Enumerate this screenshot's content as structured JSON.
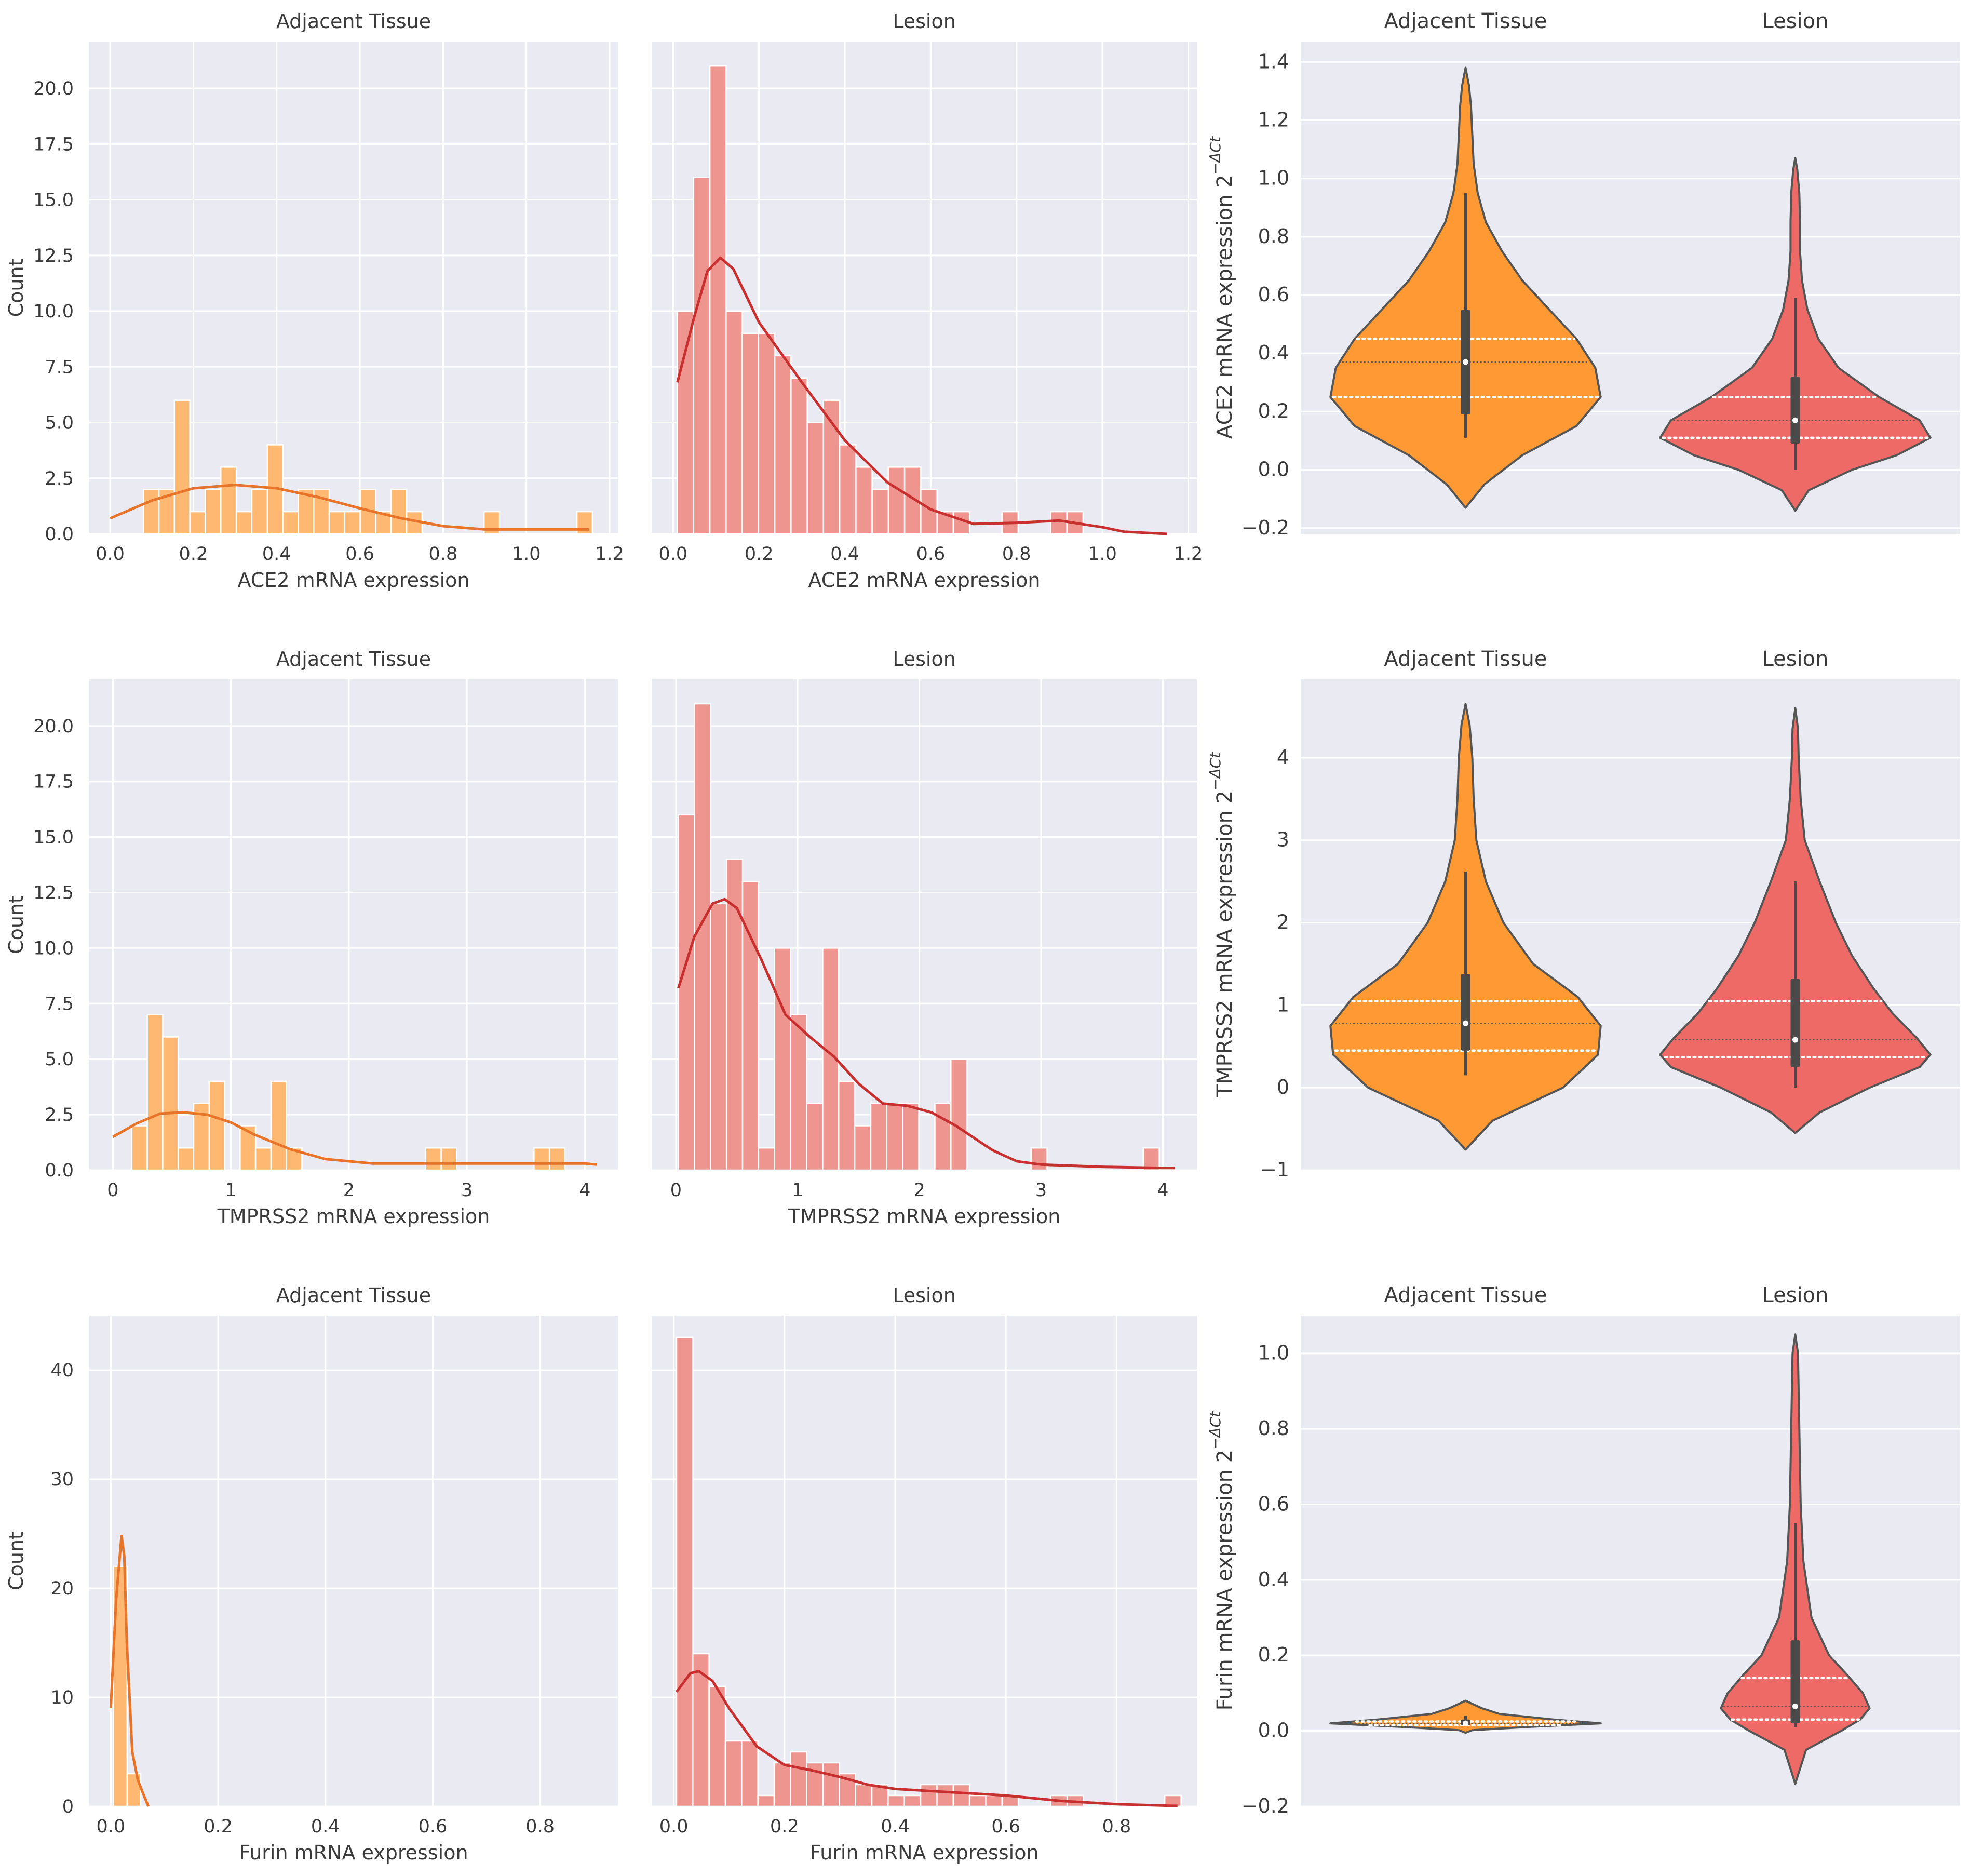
{
  "figure": {
    "background": "#ffffff",
    "panel_bg": "#eaeaf2",
    "grid_color": "#ffffff"
  },
  "colors": {
    "adjacent_fill": "#ffb871",
    "adjacent_line": "#e8742a",
    "lesion_fill": "#ee9590",
    "lesion_line": "#c83030",
    "violin_adjacent": "#ff9933",
    "violin_lesion": "#ee6a66",
    "violin_edge": "#555555"
  },
  "chart_data": [
    {
      "id": "ace2-adjacent",
      "type": "bar",
      "subtype": "histogram",
      "title": "Adjacent Tissue",
      "xlabel": "ACE2 mRNA expression",
      "ylabel": "Count",
      "xlim": [
        -0.05,
        1.22
      ],
      "ylim": [
        0,
        22.1
      ],
      "xticks": [
        0.0,
        0.2,
        0.4,
        0.6,
        0.8,
        1.0,
        1.2
      ],
      "xtick_labels": [
        "0.0",
        "0.2",
        "0.4",
        "0.6",
        "0.8",
        "1.0",
        "1.2"
      ],
      "yticks": [
        0,
        2.5,
        5,
        7.5,
        10,
        12.5,
        15,
        17.5,
        20
      ],
      "ytick_labels": [
        "0.0",
        "2.5",
        "5.0",
        "7.5",
        "10.0",
        "12.5",
        "15.0",
        "17.5",
        "20.0"
      ],
      "show_yticklabels": true,
      "color": "adjacent",
      "bin_start": 0.08,
      "bin_width": 0.0372,
      "counts": [
        2,
        2,
        6,
        1,
        2,
        3,
        1,
        2,
        4,
        1,
        2,
        2,
        1,
        1,
        2,
        1,
        2,
        1,
        0,
        0,
        0,
        0,
        1,
        0,
        0,
        0,
        0,
        0,
        1
      ],
      "kde_x": [
        0,
        0.1,
        0.2,
        0.3,
        0.4,
        0.5,
        0.6,
        0.7,
        0.8,
        0.9,
        1.0,
        1.15
      ],
      "kde_y": [
        0.7,
        1.5,
        2.05,
        2.2,
        2.05,
        1.65,
        1.15,
        0.7,
        0.35,
        0.2,
        0.2,
        0.2
      ]
    },
    {
      "id": "ace2-lesion",
      "type": "bar",
      "subtype": "histogram",
      "title": "Lesion",
      "xlabel": "ACE2 mRNA expression",
      "ylabel": "",
      "xlim": [
        -0.05,
        1.22
      ],
      "ylim": [
        0,
        22.1
      ],
      "xticks": [
        0.0,
        0.2,
        0.4,
        0.6,
        0.8,
        1.0,
        1.2
      ],
      "xtick_labels": [
        "0.0",
        "0.2",
        "0.4",
        "0.6",
        "0.8",
        "1.0",
        "1.2"
      ],
      "yticks": [
        0,
        2.5,
        5,
        7.5,
        10,
        12.5,
        15,
        17.5,
        20
      ],
      "ytick_labels": [],
      "show_yticklabels": false,
      "color": "lesion",
      "bin_start": 0.01,
      "bin_width": 0.0378,
      "counts": [
        10,
        16,
        21,
        10,
        9,
        9,
        8,
        7,
        5,
        6,
        4,
        3,
        2,
        3,
        3,
        2,
        1,
        1,
        0,
        0,
        1,
        0,
        0,
        1,
        1
      ],
      "kde_x": [
        0.01,
        0.05,
        0.08,
        0.11,
        0.14,
        0.2,
        0.3,
        0.4,
        0.5,
        0.6,
        0.7,
        0.8,
        0.9,
        1.0,
        1.05,
        1.15
      ],
      "kde_y": [
        6.8,
        9.8,
        11.8,
        12.4,
        11.9,
        9.5,
        6.8,
        4.2,
        2.3,
        1.1,
        0.45,
        0.5,
        0.6,
        0.3,
        0.1,
        0.0
      ]
    },
    {
      "id": "ace2-violin",
      "type": "violin",
      "titles": [
        "Adjacent Tissue",
        "Lesion"
      ],
      "ylabel": "ACE2 mRNA expression 2",
      "ylabel_sup": "−ΔCt",
      "ylim": [
        -0.22,
        1.47
      ],
      "yticks": [
        -0.2,
        0,
        0.2,
        0.4,
        0.6,
        0.8,
        1.0,
        1.2,
        1.4
      ],
      "ytick_labels": [
        "−0.2",
        "0.0",
        "0.2",
        "0.4",
        "0.6",
        "0.8",
        "1.0",
        "1.2",
        "1.4"
      ],
      "groups": [
        {
          "name": "Adjacent Tissue",
          "color": "adjacent",
          "profile_y": [
            -0.13,
            -0.05,
            0.05,
            0.15,
            0.25,
            0.35,
            0.45,
            0.55,
            0.65,
            0.75,
            0.85,
            0.95,
            1.05,
            1.15,
            1.25,
            1.32,
            1.38
          ],
          "profile_w": [
            0,
            0.14,
            0.42,
            0.82,
            1.0,
            0.96,
            0.82,
            0.62,
            0.42,
            0.27,
            0.15,
            0.09,
            0.06,
            0.05,
            0.04,
            0.025,
            0
          ],
          "q1": 0.19,
          "median": 0.37,
          "q3": 0.55,
          "whisker_low": 0.11,
          "whisker_high": 0.95,
          "dash_lines": [
            0.25,
            0.45
          ],
          "mid_line": 0.37
        },
        {
          "name": "Lesion",
          "color": "lesion",
          "profile_y": [
            -0.14,
            -0.07,
            0.0,
            0.05,
            0.11,
            0.17,
            0.25,
            0.35,
            0.45,
            0.55,
            0.65,
            0.75,
            0.85,
            0.95,
            1.03,
            1.07
          ],
          "profile_w": [
            0,
            0.1,
            0.42,
            0.75,
            1.0,
            0.92,
            0.62,
            0.32,
            0.17,
            0.09,
            0.05,
            0.035,
            0.035,
            0.03,
            0.015,
            0
          ],
          "q1": 0.09,
          "median": 0.17,
          "q3": 0.32,
          "whisker_low": 0.0,
          "whisker_high": 0.59,
          "dash_lines": [
            0.11,
            0.25
          ],
          "mid_line": 0.17
        }
      ]
    },
    {
      "id": "tmprss2-adjacent",
      "type": "bar",
      "subtype": "histogram",
      "title": "Adjacent Tissue",
      "xlabel": "TMPRSS2 mRNA expression",
      "ylabel": "Count",
      "xlim": [
        -0.2,
        4.28
      ],
      "ylim": [
        0,
        22.1
      ],
      "xticks": [
        0,
        1,
        2,
        3,
        4
      ],
      "xtick_labels": [
        "0",
        "1",
        "2",
        "3",
        "4"
      ],
      "yticks": [
        0,
        2.5,
        5,
        7.5,
        10,
        12.5,
        15,
        17.5,
        20
      ],
      "ytick_labels": [
        "0.0",
        "2.5",
        "5.0",
        "7.5",
        "10.0",
        "12.5",
        "15.0",
        "17.5",
        "20.0"
      ],
      "show_yticklabels": true,
      "color": "adjacent",
      "bin_start": 0.16,
      "bin_width": 0.1311,
      "counts": [
        2,
        7,
        6,
        1,
        3,
        4,
        0,
        2,
        1,
        4,
        1,
        0,
        0,
        0,
        0,
        0,
        0,
        0,
        0,
        1,
        1,
        0,
        0,
        0,
        0,
        0,
        1,
        1
      ],
      "kde_x": [
        0,
        0.2,
        0.4,
        0.6,
        0.8,
        1.0,
        1.2,
        1.5,
        1.8,
        2.2,
        2.6,
        3.0,
        3.5,
        4.0,
        4.1
      ],
      "kde_y": [
        1.5,
        2.1,
        2.55,
        2.6,
        2.5,
        2.15,
        1.6,
        0.95,
        0.5,
        0.3,
        0.3,
        0.3,
        0.3,
        0.3,
        0.25
      ]
    },
    {
      "id": "tmprss2-lesion",
      "type": "bar",
      "subtype": "histogram",
      "title": "Lesion",
      "xlabel": "TMPRSS2 mRNA expression",
      "ylabel": "",
      "xlim": [
        -0.2,
        4.28
      ],
      "ylim": [
        0,
        22.1
      ],
      "xticks": [
        0,
        1,
        2,
        3,
        4
      ],
      "xtick_labels": [
        "0",
        "1",
        "2",
        "3",
        "4"
      ],
      "yticks": [
        0,
        2.5,
        5,
        7.5,
        10,
        12.5,
        15,
        17.5,
        20
      ],
      "ytick_labels": [],
      "show_yticklabels": false,
      "color": "lesion",
      "bin_start": 0.02,
      "bin_width": 0.1317,
      "counts": [
        16,
        21,
        12,
        14,
        13,
        1,
        10,
        7,
        3,
        10,
        4,
        2,
        3,
        3,
        3,
        0,
        3,
        5,
        0,
        0,
        0,
        0,
        1,
        0,
        0,
        0,
        0,
        0,
        0,
        1
      ],
      "kde_x": [
        0.02,
        0.15,
        0.3,
        0.4,
        0.5,
        0.7,
        0.9,
        1.1,
        1.3,
        1.5,
        1.7,
        1.9,
        2.1,
        2.3,
        2.6,
        2.8,
        3.0,
        3.5,
        4.0,
        4.1
      ],
      "kde_y": [
        8.2,
        10.5,
        12.0,
        12.2,
        11.8,
        9.5,
        7.0,
        6.0,
        5.1,
        3.9,
        3.0,
        2.9,
        2.6,
        2.0,
        0.9,
        0.4,
        0.25,
        0.15,
        0.1,
        0.1
      ]
    },
    {
      "id": "tmprss2-violin",
      "type": "violin",
      "titles": [
        "Adjacent Tissue",
        "Lesion"
      ],
      "ylabel": "TMPRSS2 mRNA expression 2",
      "ylabel_sup": "−ΔCt",
      "ylim": [
        -1.0,
        4.95
      ],
      "yticks": [
        -1,
        0,
        1,
        2,
        3,
        4
      ],
      "ytick_labels": [
        "−1",
        "0",
        "1",
        "2",
        "3",
        "4"
      ],
      "groups": [
        {
          "name": "Adjacent Tissue",
          "color": "adjacent",
          "profile_y": [
            -0.75,
            -0.4,
            0,
            0.4,
            0.75,
            1.1,
            1.5,
            2.0,
            2.5,
            3.0,
            3.5,
            4.0,
            4.4,
            4.65
          ],
          "profile_w": [
            0,
            0.2,
            0.72,
            0.98,
            1.0,
            0.83,
            0.5,
            0.28,
            0.15,
            0.08,
            0.06,
            0.05,
            0.03,
            0
          ],
          "q1": 0.45,
          "median": 0.78,
          "q3": 1.38,
          "whisker_low": 0.15,
          "whisker_high": 2.62,
          "dash_lines": [
            0.45,
            1.05
          ],
          "mid_line": 0.78
        },
        {
          "name": "Lesion",
          "color": "lesion",
          "profile_y": [
            -0.55,
            -0.3,
            0,
            0.25,
            0.4,
            0.6,
            0.9,
            1.2,
            1.6,
            2.0,
            2.5,
            3.0,
            3.5,
            4.0,
            4.35,
            4.6
          ],
          "profile_w": [
            0,
            0.18,
            0.55,
            0.92,
            1.0,
            0.9,
            0.72,
            0.58,
            0.42,
            0.3,
            0.18,
            0.07,
            0.04,
            0.025,
            0.02,
            0
          ],
          "q1": 0.25,
          "median": 0.58,
          "q3": 1.32,
          "whisker_low": 0.0,
          "whisker_high": 2.5,
          "dash_lines": [
            0.37,
            1.05
          ],
          "mid_line": 0.58
        }
      ]
    },
    {
      "id": "furin-adjacent",
      "type": "bar",
      "subtype": "histogram",
      "title": "Adjacent Tissue",
      "xlabel": "Furin mRNA expression",
      "ylabel": "Count",
      "xlim": [
        -0.04,
        0.945
      ],
      "ylim": [
        0,
        45
      ],
      "xticks": [
        0.0,
        0.2,
        0.4,
        0.6,
        0.8
      ],
      "xtick_labels": [
        "0.0",
        "0.2",
        "0.4",
        "0.6",
        "0.8"
      ],
      "yticks": [
        0,
        10,
        20,
        30,
        40
      ],
      "ytick_labels": [
        "0",
        "10",
        "20",
        "30",
        "40"
      ],
      "show_yticklabels": true,
      "color": "adjacent",
      "bin_start": 0.005,
      "bin_width": 0.0254,
      "counts": [
        22,
        3
      ],
      "kde_x": [
        0,
        0.01,
        0.02,
        0.025,
        0.03,
        0.04,
        0.05,
        0.06,
        0.07
      ],
      "kde_y": [
        9.0,
        19,
        24.8,
        23,
        15,
        5,
        2.5,
        1.2,
        0.0
      ]
    },
    {
      "id": "furin-lesion",
      "type": "bar",
      "subtype": "histogram",
      "title": "Lesion",
      "xlabel": "Furin mRNA expression",
      "ylabel": "",
      "xlim": [
        -0.04,
        0.945
      ],
      "ylim": [
        0,
        45
      ],
      "xticks": [
        0.0,
        0.2,
        0.4,
        0.6,
        0.8
      ],
      "xtick_labels": [
        "0.0",
        "0.2",
        "0.4",
        "0.6",
        "0.8"
      ],
      "yticks": [
        0,
        10,
        20,
        30,
        40
      ],
      "ytick_labels": [],
      "show_yticklabels": false,
      "color": "lesion",
      "bin_start": 0.005,
      "bin_width": 0.0294,
      "counts": [
        43,
        14,
        11,
        6,
        6,
        1,
        4,
        5,
        4,
        4,
        3,
        2,
        2,
        1,
        1,
        2,
        2,
        2,
        1,
        1,
        1,
        0,
        0,
        1,
        1,
        0,
        0,
        0,
        0,
        0,
        1
      ],
      "kde_x": [
        0.005,
        0.03,
        0.045,
        0.07,
        0.1,
        0.15,
        0.2,
        0.25,
        0.3,
        0.35,
        0.4,
        0.5,
        0.6,
        0.7,
        0.8,
        0.9,
        0.91
      ],
      "kde_y": [
        10.5,
        12.2,
        12.4,
        11.5,
        9.0,
        5.5,
        3.8,
        3.3,
        2.7,
        2.0,
        1.6,
        1.3,
        1.0,
        0.5,
        0.2,
        0.05,
        0.05
      ]
    },
    {
      "id": "furin-violin",
      "type": "violin",
      "titles": [
        "Adjacent Tissue",
        "Lesion"
      ],
      "ylabel": "Furin mRNA expression 2",
      "ylabel_sup": "−ΔCt",
      "ylim": [
        -0.2,
        1.1
      ],
      "yticks": [
        -0.2,
        0,
        0.2,
        0.4,
        0.6,
        0.8,
        1.0
      ],
      "ytick_labels": [
        "−0.2",
        "0.0",
        "0.2",
        "0.4",
        "0.6",
        "0.8",
        "1.0"
      ],
      "groups": [
        {
          "name": "Adjacent Tissue",
          "color": "adjacent",
          "profile_y": [
            -0.005,
            0.002,
            0.01,
            0.02,
            0.03,
            0.045,
            0.06,
            0.08
          ],
          "profile_w": [
            0,
            0.05,
            0.45,
            1.0,
            0.65,
            0.25,
            0.12,
            0
          ],
          "q1": 0.015,
          "median": 0.02,
          "q3": 0.03,
          "whisker_low": 0.012,
          "whisker_high": 0.04,
          "dash_lines": [
            0.015,
            0.025
          ],
          "mid_line": 0.02
        },
        {
          "name": "Lesion",
          "color": "lesion",
          "profile_y": [
            -0.14,
            -0.05,
            0.0,
            0.03,
            0.06,
            0.1,
            0.15,
            0.2,
            0.3,
            0.45,
            0.6,
            0.8,
            1.0,
            1.05
          ],
          "profile_w": [
            0,
            0.08,
            0.34,
            0.48,
            0.55,
            0.5,
            0.38,
            0.25,
            0.12,
            0.06,
            0.04,
            0.03,
            0.02,
            0
          ],
          "q1": 0.02,
          "median": 0.065,
          "q3": 0.24,
          "whisker_low": 0.01,
          "whisker_high": 0.55,
          "dash_lines": [
            0.03,
            0.14
          ],
          "mid_line": 0.065
        }
      ]
    }
  ]
}
